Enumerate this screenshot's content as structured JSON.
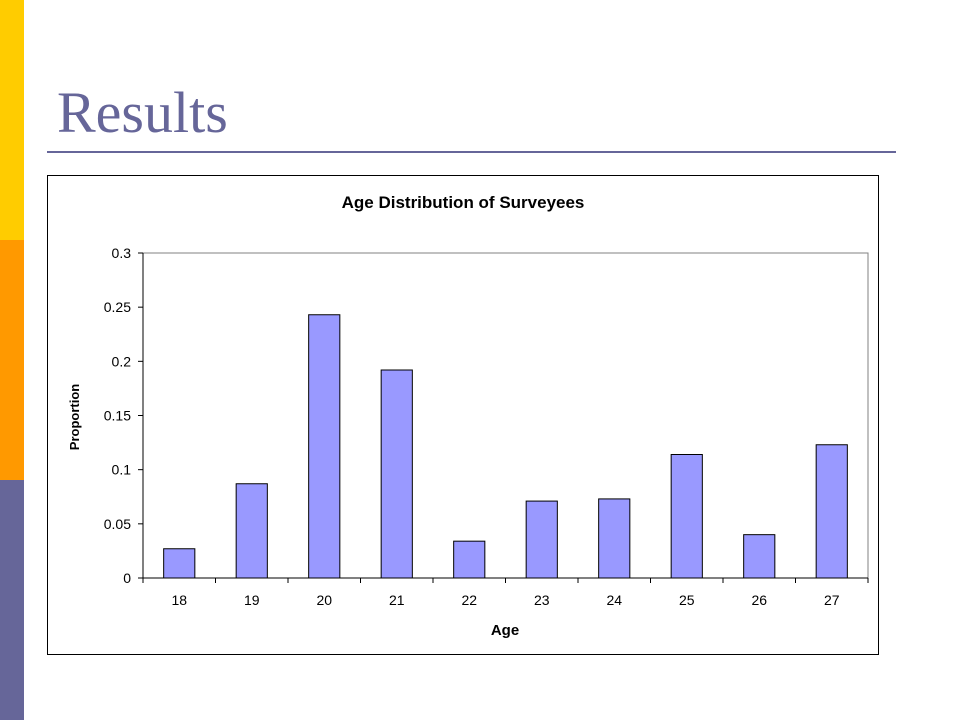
{
  "slide": {
    "title": "Results",
    "accent_colors": [
      "#ffcc00",
      "#ff9900",
      "#666699"
    ]
  },
  "chart_data": {
    "type": "bar",
    "title": "Age Distribution of Surveyees",
    "xlabel": "Age",
    "ylabel": "Proportion",
    "categories": [
      "18",
      "19",
      "20",
      "21",
      "22",
      "23",
      "24",
      "25",
      "26",
      "27"
    ],
    "values": [
      0.027,
      0.087,
      0.243,
      0.192,
      0.034,
      0.071,
      0.073,
      0.114,
      0.04,
      0.123
    ],
    "ylim": [
      0,
      0.3
    ],
    "yticks": [
      0,
      0.05,
      0.1,
      0.15,
      0.2,
      0.25,
      0.3
    ],
    "ytick_labels": [
      "0",
      "0.05",
      "0.1",
      "0.15",
      "0.2",
      "0.25",
      "0.3"
    ],
    "bar_color": "#9999ff",
    "grid": false,
    "legend": false
  }
}
